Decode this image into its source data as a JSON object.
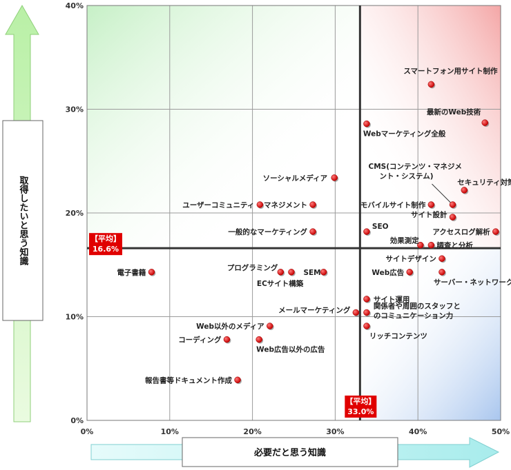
{
  "chart_data": {
    "type": "scatter",
    "xlabel": "必要だと思う知識",
    "ylabel": "取得したいと思う知識",
    "xlim": [
      0,
      50
    ],
    "ylim": [
      0,
      40
    ],
    "x_ticks": [
      "0%",
      "10%",
      "20%",
      "30%",
      "40%",
      "50%"
    ],
    "y_ticks": [
      "0%",
      "10%",
      "20%",
      "30%",
      "40%"
    ],
    "grid": true,
    "averages": {
      "x": 33.0,
      "x_label": "【平均】",
      "x_value": "33.0%",
      "y": 16.6,
      "y_label": "【平均】",
      "y_value": "16.6%"
    },
    "quadrant_colors": {
      "top_left": "#d6f5d6",
      "top_right": "#f7b8b8",
      "bottom_right": "#bcd4f2"
    },
    "marker_color": "#e00000",
    "points": [
      {
        "label": "スマートフォン用サイト制作",
        "x": 41.6,
        "y": 32.4
      },
      {
        "label": "最新のWeb技術",
        "x": 48.1,
        "y": 28.7
      },
      {
        "label": "Webマーケティング全般",
        "x": 33.8,
        "y": 28.6
      },
      {
        "label": "CMS(コンテンツ・マネジメ",
        "label2": "ント・システム)",
        "x": 44.2,
        "y": 20.8
      },
      {
        "label": "セキュリティ対策",
        "x": 45.6,
        "y": 22.2
      },
      {
        "label": "ソーシャルメディア",
        "x": 29.9,
        "y": 23.4
      },
      {
        "label": "ユーザーコミュニティ",
        "x": 20.9,
        "y": 20.8
      },
      {
        "label": "マネジメント",
        "x": 27.3,
        "y": 20.8
      },
      {
        "label": "モバイルサイト制作",
        "x": 41.6,
        "y": 20.8
      },
      {
        "label": "サイト設計",
        "x": 44.2,
        "y": 19.6
      },
      {
        "label": "一般的なマーケティング",
        "x": 27.3,
        "y": 18.2
      },
      {
        "label": "SEO",
        "x": 33.8,
        "y": 18.2
      },
      {
        "label": "アクセスログ解析",
        "x": 49.4,
        "y": 18.2
      },
      {
        "label": "効果測定",
        "x": 40.3,
        "y": 16.9
      },
      {
        "label": "調査と分析",
        "x": 41.6,
        "y": 16.9
      },
      {
        "label": "電子書籍",
        "x": 7.8,
        "y": 14.3
      },
      {
        "label": "プログラミング",
        "x": 23.4,
        "y": 14.3
      },
      {
        "label": "ECサイト構築",
        "x": 24.7,
        "y": 14.3
      },
      {
        "label": "SEM",
        "x": 28.6,
        "y": 14.3
      },
      {
        "label": "サイトデザイン",
        "x": 42.9,
        "y": 15.6
      },
      {
        "label": "Web広告",
        "x": 39.0,
        "y": 14.3
      },
      {
        "label": "サーバー・ネットワーク",
        "x": 42.9,
        "y": 14.3
      },
      {
        "label": "サイト運用",
        "x": 33.8,
        "y": 11.7
      },
      {
        "label": "メールマーケティング",
        "x": 32.5,
        "y": 10.4
      },
      {
        "label": "関係者や周囲のスタッフと",
        "label2": "のコミュニケーション力",
        "x": 33.8,
        "y": 10.4
      },
      {
        "label": "Web以外のメディア",
        "x": 22.1,
        "y": 9.1
      },
      {
        "label": "リッチコンテンツ",
        "x": 33.8,
        "y": 9.1
      },
      {
        "label": "コーディング",
        "x": 16.9,
        "y": 7.8
      },
      {
        "label": "Web広告以外の広告",
        "x": 20.8,
        "y": 7.8
      },
      {
        "label": "報告書等ドキュメント作成",
        "x": 18.2,
        "y": 3.9
      }
    ]
  }
}
